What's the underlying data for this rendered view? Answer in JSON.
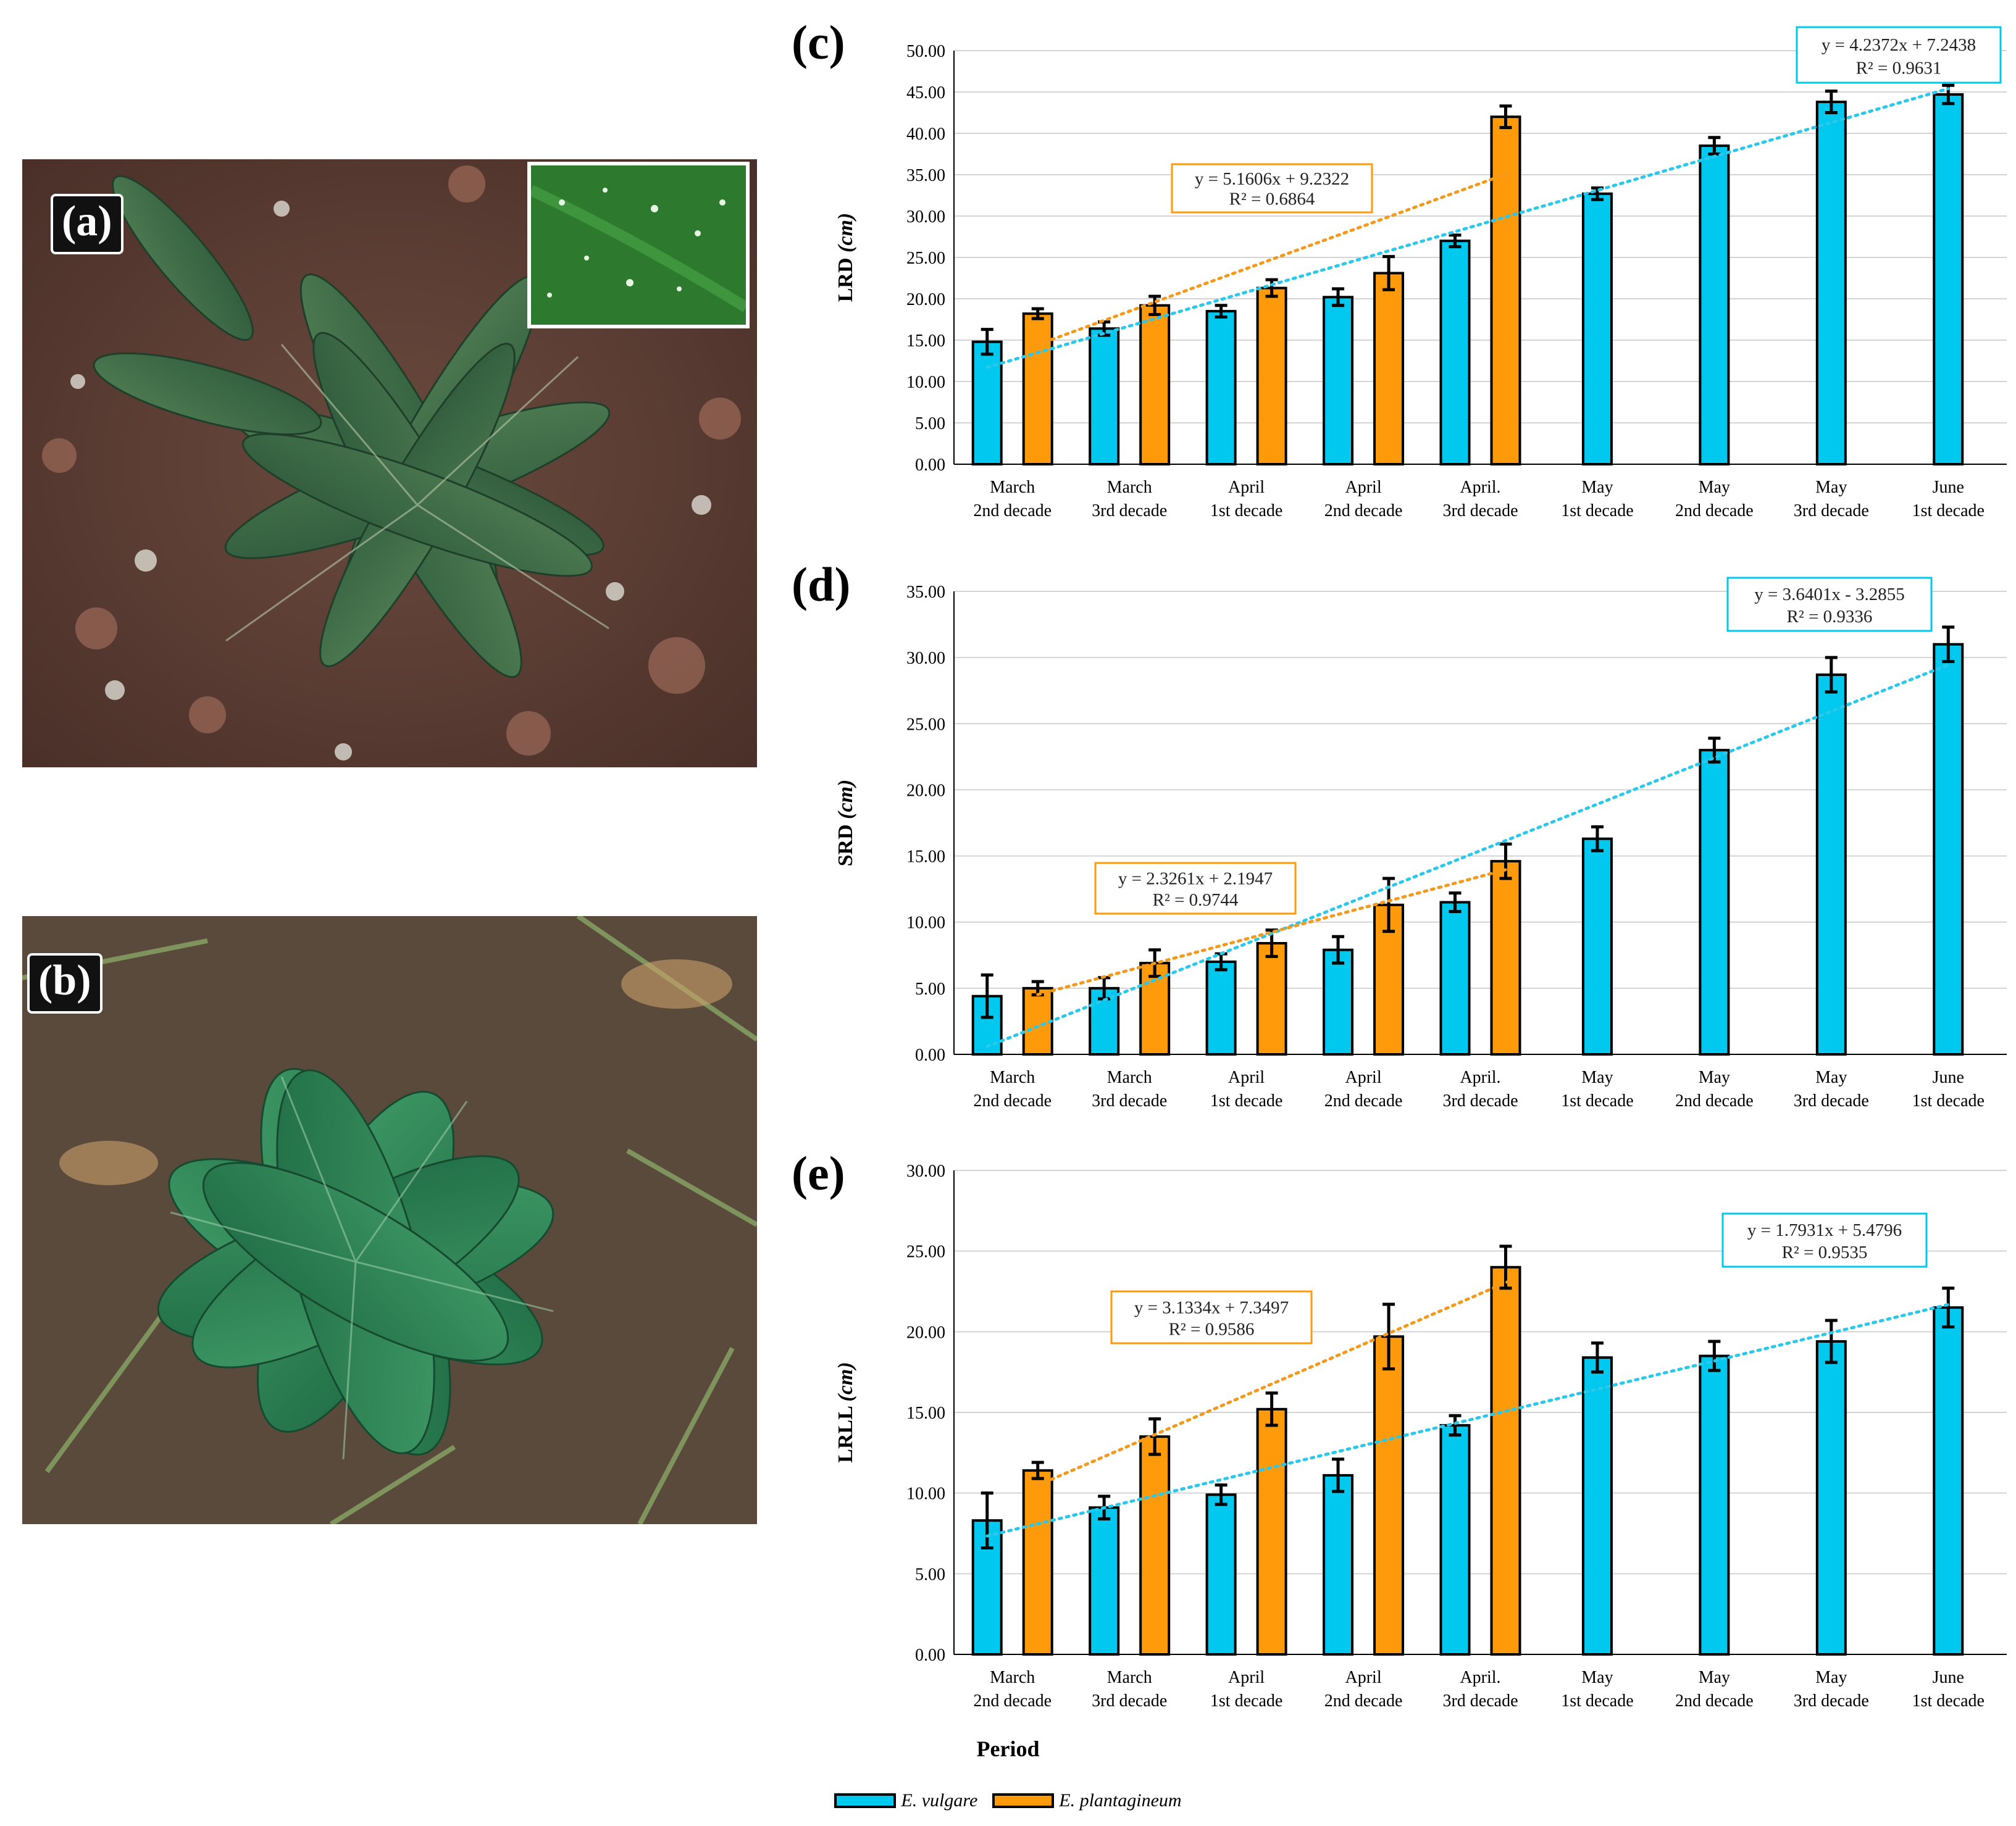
{
  "panel_labels": {
    "a": "(a)",
    "b": "(b)",
    "c": "(c)",
    "d": "(d)",
    "e": "(e)"
  },
  "colors": {
    "vulgare": "#00c8ee",
    "plantagineum": "#ff9a0a",
    "vulgare_trend": "#2ac8ea",
    "plantagineum_trend": "#f39a1c",
    "grid": "#d4d4d4"
  },
  "icons": {
    "photo_a": "echium-vulgare-rosette-photo",
    "photo_a_inset": "leaf-closeup-photo",
    "photo_b": "echium-plantagineum-rosette-photo"
  },
  "xlabel": "Period",
  "legend": [
    {
      "label": "E. vulgare"
    },
    {
      "label": "E. plantagineum"
    }
  ],
  "chart_data": [
    {
      "id": "c",
      "type": "bar",
      "ylabel": "LRD",
      "ylabel_unit": "(cm)",
      "ylim": [
        0,
        50
      ],
      "ytick_step": 5,
      "yticks": [
        "0.00",
        "5.00",
        "10.00",
        "15.00",
        "20.00",
        "25.00",
        "30.00",
        "35.00",
        "40.00",
        "45.00",
        "50.00"
      ],
      "categories": [
        [
          "March",
          "2nd decade"
        ],
        [
          "March",
          "3rd decade"
        ],
        [
          "April",
          "1st decade"
        ],
        [
          "April",
          "2nd decade"
        ],
        [
          "April.",
          "3rd decade"
        ],
        [
          "May",
          "1st decade"
        ],
        [
          "May",
          "2nd decade"
        ],
        [
          "May",
          "3rd decade"
        ],
        [
          "June",
          "1st decade"
        ]
      ],
      "series": [
        {
          "name": "E. vulgare",
          "values": [
            14.8,
            16.4,
            18.5,
            20.2,
            27.0,
            32.7,
            38.5,
            43.8,
            44.7
          ],
          "errors": [
            1.5,
            0.8,
            0.7,
            1.0,
            0.7,
            0.7,
            1.0,
            1.3,
            1.1
          ]
        },
        {
          "name": "E. plantagineum",
          "values": [
            18.2,
            19.2,
            21.3,
            23.1,
            42.0,
            null,
            null,
            null,
            null
          ],
          "errors": [
            0.6,
            1.1,
            1.0,
            2.0,
            1.3,
            null,
            null,
            null,
            null
          ]
        }
      ],
      "trendlines": [
        {
          "series": "E. vulgare",
          "equation": "y = 4.2372x + 7.2438",
          "r2": "R² = 0.9631"
        },
        {
          "series": "E. plantagineum",
          "equation": "y = 5.1606x + 9.2322",
          "r2": "R² = 0.6864"
        }
      ]
    },
    {
      "id": "d",
      "type": "bar",
      "ylabel": "SRD",
      "ylabel_unit": "(cm)",
      "ylim": [
        0,
        35
      ],
      "ytick_step": 5,
      "yticks": [
        "0.00",
        "5.00",
        "10.00",
        "15.00",
        "20.00",
        "25.00",
        "30.00",
        "35.00"
      ],
      "categories": [
        [
          "March",
          "2nd decade"
        ],
        [
          "March",
          "3rd decade"
        ],
        [
          "April",
          "1st decade"
        ],
        [
          "April",
          "2nd decade"
        ],
        [
          "April.",
          "3rd decade"
        ],
        [
          "May",
          "1st decade"
        ],
        [
          "May",
          "2nd decade"
        ],
        [
          "May",
          "3rd decade"
        ],
        [
          "June",
          "1st decade"
        ]
      ],
      "series": [
        {
          "name": "E. vulgare",
          "values": [
            4.4,
            5.0,
            7.0,
            7.9,
            11.5,
            16.3,
            23.0,
            28.7,
            31.0
          ],
          "errors": [
            1.6,
            0.8,
            0.6,
            1.0,
            0.7,
            0.9,
            0.9,
            1.3,
            1.3
          ]
        },
        {
          "name": "E. plantagineum",
          "values": [
            5.0,
            6.9,
            8.4,
            11.3,
            14.6,
            null,
            null,
            null,
            null
          ],
          "errors": [
            0.5,
            1.0,
            1.0,
            2.0,
            1.3,
            null,
            null,
            null,
            null
          ]
        }
      ],
      "trendlines": [
        {
          "series": "E. vulgare",
          "equation": "y = 3.6401x - 3.2855",
          "r2": "R² = 0.9336"
        },
        {
          "series": "E. plantagineum",
          "equation": "y = 2.3261x + 2.1947",
          "r2": "R² = 0.9744"
        }
      ]
    },
    {
      "id": "e",
      "type": "bar",
      "ylabel": "LRLL",
      "ylabel_unit": "(cm)",
      "ylim": [
        0,
        30
      ],
      "ytick_step": 5,
      "yticks": [
        "0.00",
        "5.00",
        "10.00",
        "15.00",
        "20.00",
        "25.00",
        "30.00"
      ],
      "categories": [
        [
          "March",
          "2nd decade"
        ],
        [
          "March",
          "3rd decade"
        ],
        [
          "April",
          "1st decade"
        ],
        [
          "April",
          "2nd decade"
        ],
        [
          "April.",
          "3rd decade"
        ],
        [
          "May",
          "1st decade"
        ],
        [
          "May",
          "2nd decade"
        ],
        [
          "May",
          "3rd decade"
        ],
        [
          "June",
          "1st decade"
        ]
      ],
      "series": [
        {
          "name": "E. vulgare",
          "values": [
            8.3,
            9.1,
            9.9,
            11.1,
            14.2,
            18.4,
            18.5,
            19.4,
            21.5
          ],
          "errors": [
            1.7,
            0.7,
            0.6,
            1.0,
            0.6,
            0.9,
            0.9,
            1.3,
            1.2
          ]
        },
        {
          "name": "E. plantagineum",
          "values": [
            11.4,
            13.5,
            15.2,
            19.7,
            24.0,
            null,
            null,
            null,
            null
          ],
          "errors": [
            0.5,
            1.1,
            1.0,
            2.0,
            1.3,
            null,
            null,
            null,
            null
          ]
        }
      ],
      "trendlines": [
        {
          "series": "E. vulgare",
          "equation": "y = 1.7931x + 5.4796",
          "r2": "R² = 0.9535"
        },
        {
          "series": "E. plantagineum",
          "equation": "y = 3.1334x + 7.3497",
          "r2": "R² = 0.9586"
        }
      ]
    }
  ]
}
